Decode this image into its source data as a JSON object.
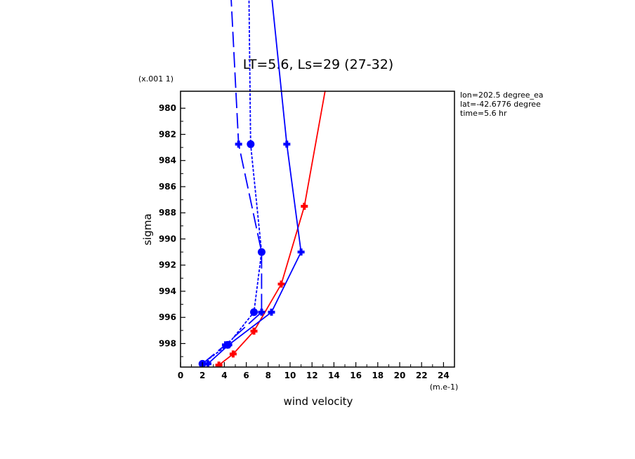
{
  "chart_data": {
    "type": "line",
    "title": "LT=5.6, Ls=29 (27-32)",
    "xlabel": "wind velocity",
    "xunits": "(m.e-1)",
    "ylabel": "sigma",
    "yunits": "(x.001 1)",
    "xlim": [
      0,
      25
    ],
    "ylim": [
      999.8,
      978.7
    ],
    "xticks": [
      0,
      2,
      4,
      6,
      8,
      10,
      12,
      14,
      16,
      18,
      20,
      22,
      24
    ],
    "yticks": [
      980,
      982,
      984,
      986,
      988,
      990,
      992,
      994,
      996,
      998
    ],
    "info": [
      "lon=202.5 degree_ea",
      "lat=-42.6776 degree",
      "time=5.6 hr"
    ],
    "colors": {
      "blue": "#0000ff",
      "red": "#ff0000"
    },
    "series": [
      {
        "color": "#ff0000",
        "dash": "solid",
        "marker": "plus",
        "x": [
          3.5,
          4.8,
          6.7,
          9.2,
          11.3,
          13.2
        ],
        "y": [
          999.65,
          998.8,
          997.05,
          993.45,
          987.5,
          978.65
        ]
      },
      {
        "color": "#0000ff",
        "dash": "solid",
        "marker": "plus",
        "x": [
          2.5,
          4.4,
          8.3,
          11.0,
          9.7,
          7.9
        ],
        "y": [
          999.55,
          998.1,
          995.6,
          991.0,
          982.75,
          968.0
        ]
      },
      {
        "color": "#0000ff",
        "dash": "longdash",
        "marker": "plus",
        "x": [
          2.0,
          4.1,
          7.4,
          7.4,
          5.3,
          4.4
        ],
        "y": [
          999.55,
          998.1,
          995.6,
          991.0,
          982.75,
          968.0
        ]
      },
      {
        "color": "#0000ff",
        "dash": "shortdash",
        "marker": "circle",
        "x": [
          2.0,
          4.3,
          6.7,
          7.4,
          6.4,
          6.2
        ],
        "y": [
          999.55,
          998.1,
          995.6,
          991.0,
          982.75,
          968.0
        ]
      }
    ]
  }
}
